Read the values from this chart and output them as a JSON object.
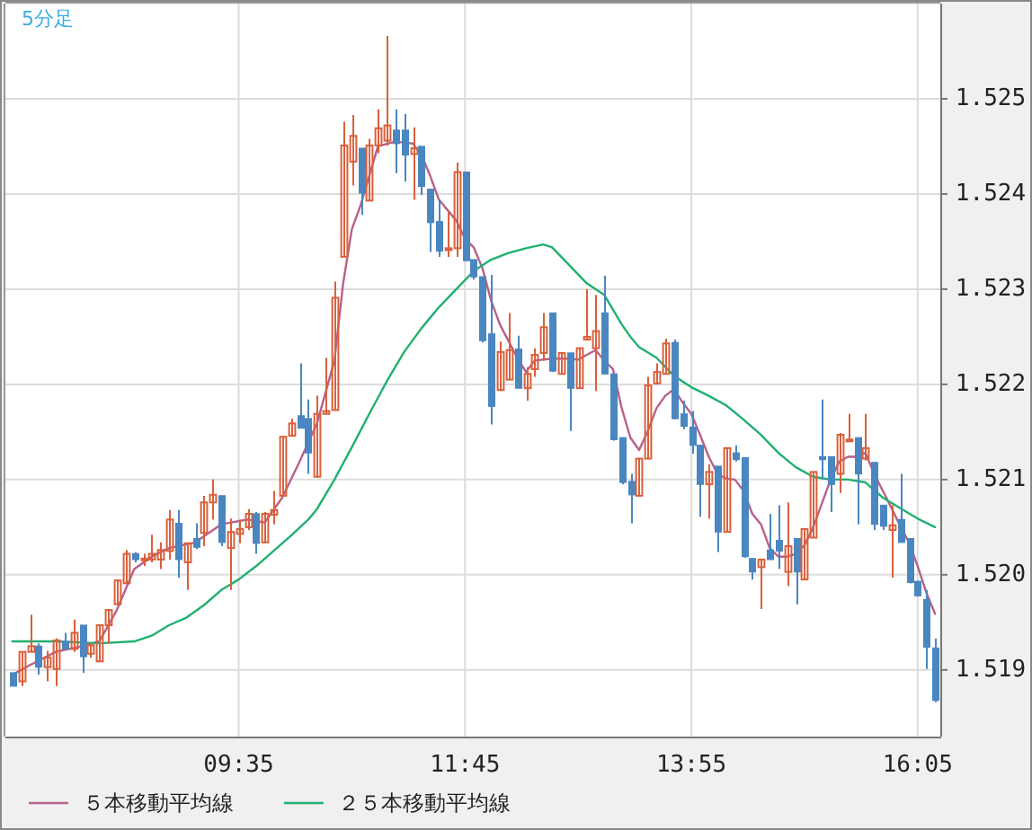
{
  "chart_data": {
    "type": "candlestick",
    "title": "5分足",
    "x": [
      7.4167,
      7.5,
      7.5833,
      7.6667,
      7.75,
      7.8333,
      7.9167,
      8.0,
      8.0833,
      8.1667,
      8.25,
      8.3333,
      8.4167,
      8.5,
      8.5833,
      8.6667,
      8.75,
      8.8333,
      8.9167,
      9.0,
      9.0833,
      9.1667,
      9.25,
      9.3333,
      9.4167,
      9.5,
      9.5833,
      9.6667,
      9.75,
      9.8333,
      9.9167,
      10.0,
      10.0833,
      10.1667,
      10.25,
      10.3333,
      10.4167,
      10.5,
      10.5833,
      10.6667,
      10.75,
      10.8333,
      10.9167,
      11.0,
      11.0833,
      11.1667,
      11.25,
      11.3333,
      11.4167,
      11.5,
      11.5833,
      11.6667,
      11.75,
      11.8333,
      11.9167,
      12.0,
      12.0833,
      12.1667,
      12.25,
      12.3333,
      12.4167,
      12.5,
      12.5833,
      12.6667,
      12.75,
      12.8333,
      12.9167,
      13.0,
      13.0833,
      13.1667,
      13.25,
      13.3333,
      13.4167,
      13.5,
      13.5833,
      13.6667,
      13.75,
      13.8333,
      13.9167,
      14.0,
      14.0833,
      14.1667,
      14.25,
      14.3333,
      14.4167,
      14.5,
      14.5833,
      14.6667,
      14.75,
      14.8333,
      14.9167,
      15.0,
      15.0833,
      15.1667,
      15.25,
      15.3333,
      15.4167,
      15.5,
      15.5833,
      15.6667,
      15.75,
      15.8333,
      15.9167,
      16.0,
      16.0833,
      16.1667,
      16.25
    ],
    "ohlc": [
      [
        1.51897,
        1.51897,
        1.51883,
        1.51883
      ],
      [
        1.51888,
        1.51919,
        1.51883,
        1.51919
      ],
      [
        1.51919,
        1.51958,
        1.51919,
        1.51925
      ],
      [
        1.51925,
        1.51928,
        1.51895,
        1.51903
      ],
      [
        1.51903,
        1.5192,
        1.51888,
        1.51913
      ],
      [
        1.51901,
        1.51933,
        1.51883,
        1.51931
      ],
      [
        1.5193,
        1.51939,
        1.51922,
        1.51922
      ],
      [
        1.51922,
        1.51953,
        1.51919,
        1.51939
      ],
      [
        1.51947,
        1.51947,
        1.51897,
        1.51914
      ],
      [
        1.51917,
        1.51928,
        1.51913,
        1.51926
      ],
      [
        1.51909,
        1.51947,
        1.51909,
        1.51947
      ],
      [
        1.51947,
        1.51963,
        1.51928,
        1.51963
      ],
      [
        1.51969,
        1.51995,
        1.51969,
        1.51994
      ],
      [
        1.51991,
        1.52026,
        1.51991,
        1.52022
      ],
      [
        1.52022,
        1.52024,
        1.52013,
        1.52016
      ],
      [
        1.52016,
        1.52022,
        1.52009,
        1.52017
      ],
      [
        1.52016,
        1.52042,
        1.52013,
        1.52022
      ],
      [
        1.52016,
        1.52034,
        1.52006,
        1.52026
      ],
      [
        1.52025,
        1.52068,
        1.52016,
        1.52058
      ],
      [
        1.52054,
        1.52068,
        1.51997,
        1.52016
      ],
      [
        1.52013,
        1.52034,
        1.51984,
        1.52033
      ],
      [
        1.52038,
        1.52054,
        1.52027,
        1.52029
      ],
      [
        1.52044,
        1.52083,
        1.5203,
        1.52076
      ],
      [
        1.52076,
        1.521,
        1.52058,
        1.52084
      ],
      [
        1.52083,
        1.52083,
        1.5203,
        1.52034
      ],
      [
        1.52028,
        1.52059,
        1.51984,
        1.52045
      ],
      [
        1.52043,
        1.52058,
        1.52033,
        1.52048
      ],
      [
        1.5205,
        1.52069,
        1.52047,
        1.52064
      ],
      [
        1.52064,
        1.52066,
        1.52022,
        1.52033
      ],
      [
        1.52034,
        1.52066,
        1.52033,
        1.52064
      ],
      [
        1.52063,
        1.52088,
        1.52053,
        1.52068
      ],
      [
        1.52083,
        1.52145,
        1.52083,
        1.52145
      ],
      [
        1.52146,
        1.52164,
        1.52146,
        1.52159
      ],
      [
        1.52167,
        1.52222,
        1.52154,
        1.52154
      ],
      [
        1.52164,
        1.52184,
        1.52106,
        1.52128
      ],
      [
        1.52103,
        1.52188,
        1.52102,
        1.52169
      ],
      [
        1.52169,
        1.52228,
        1.52169,
        1.52172
      ],
      [
        1.52173,
        1.52308,
        1.52173,
        1.52291
      ],
      [
        1.52334,
        1.52476,
        1.52334,
        1.52451
      ],
      [
        1.52434,
        1.52483,
        1.52409,
        1.52461
      ],
      [
        1.52448,
        1.52448,
        1.52378,
        1.52401
      ],
      [
        1.52393,
        1.52458,
        1.52393,
        1.52451
      ],
      [
        1.52451,
        1.52489,
        1.52443,
        1.52469
      ],
      [
        1.52456,
        1.52566,
        1.52451,
        1.52472
      ],
      [
        1.52467,
        1.52489,
        1.52422,
        1.52453
      ],
      [
        1.52467,
        1.52484,
        1.52413,
        1.52441
      ],
      [
        1.52442,
        1.5247,
        1.52394,
        1.52448
      ],
      [
        1.5245,
        1.5245,
        1.52399,
        1.52408
      ],
      [
        1.52405,
        1.52405,
        1.52339,
        1.5237
      ],
      [
        1.52371,
        1.52394,
        1.52334,
        1.5234
      ],
      [
        1.52341,
        1.52381,
        1.52334,
        1.52343
      ],
      [
        1.52343,
        1.52433,
        1.52334,
        1.52423
      ],
      [
        1.52423,
        1.52423,
        1.5233,
        1.5233
      ],
      [
        1.52331,
        1.52331,
        1.5231,
        1.52313
      ],
      [
        1.52313,
        1.52313,
        1.52244,
        1.52246
      ],
      [
        1.52253,
        1.52315,
        1.52158,
        1.52177
      ],
      [
        1.52194,
        1.52245,
        1.52193,
        1.52234
      ],
      [
        1.52205,
        1.52275,
        1.52205,
        1.52236
      ],
      [
        1.52237,
        1.52251,
        1.52196,
        1.52196
      ],
      [
        1.52196,
        1.52218,
        1.52183,
        1.52211
      ],
      [
        1.52216,
        1.52238,
        1.52208,
        1.52231
      ],
      [
        1.52233,
        1.52275,
        1.52225,
        1.5226
      ],
      [
        1.52275,
        1.52275,
        1.52213,
        1.52214
      ],
      [
        1.52211,
        1.52233,
        1.52211,
        1.52233
      ],
      [
        1.52233,
        1.52233,
        1.52151,
        1.52196
      ],
      [
        1.52196,
        1.52238,
        1.52196,
        1.52238
      ],
      [
        1.52247,
        1.523,
        1.52247,
        1.5225
      ],
      [
        1.52238,
        1.52294,
        1.52193,
        1.52256
      ],
      [
        1.52275,
        1.52314,
        1.52211,
        1.52211
      ],
      [
        1.52211,
        1.52211,
        1.52141,
        1.52142
      ],
      [
        1.52144,
        1.52144,
        1.52095,
        1.52097
      ],
      [
        1.52098,
        1.52106,
        1.52054,
        1.52084
      ],
      [
        1.52083,
        1.52122,
        1.52083,
        1.52122
      ],
      [
        1.52122,
        1.52208,
        1.52122,
        1.52199
      ],
      [
        1.52201,
        1.52222,
        1.522,
        1.52213
      ],
      [
        1.52211,
        1.52248,
        1.52211,
        1.52243
      ],
      [
        1.52244,
        1.52247,
        1.52163,
        1.52164
      ],
      [
        1.52169,
        1.52183,
        1.52153,
        1.52156
      ],
      [
        1.52155,
        1.52172,
        1.52127,
        1.52136
      ],
      [
        1.52136,
        1.52136,
        1.52061,
        1.52095
      ],
      [
        1.52095,
        1.52116,
        1.52059,
        1.52108
      ],
      [
        1.52114,
        1.52114,
        1.52024,
        1.52045
      ],
      [
        1.52045,
        1.52133,
        1.52045,
        1.52133
      ],
      [
        1.52128,
        1.52136,
        1.52119,
        1.52121
      ],
      [
        1.52123,
        1.52123,
        1.52018,
        1.52019
      ],
      [
        1.52017,
        1.52017,
        1.51995,
        1.52003
      ],
      [
        1.52008,
        1.52016,
        1.51964,
        1.52016
      ],
      [
        1.52026,
        1.52064,
        1.52016,
        1.52016
      ],
      [
        1.52036,
        1.52073,
        1.52006,
        1.52025
      ],
      [
        1.52003,
        1.52076,
        1.51988,
        1.5203
      ],
      [
        1.52038,
        1.52038,
        1.51969,
        1.52003
      ],
      [
        1.51995,
        1.52048,
        1.51995,
        1.52048
      ],
      [
        1.52039,
        1.52108,
        1.52039,
        1.52108
      ],
      [
        1.52124,
        1.52184,
        1.521,
        1.52121
      ],
      [
        1.52124,
        1.52124,
        1.52066,
        1.52095
      ],
      [
        1.52106,
        1.52149,
        1.52086,
        1.52147
      ],
      [
        1.52141,
        1.52169,
        1.5214,
        1.52142
      ],
      [
        1.52144,
        1.52144,
        1.52053,
        1.52106
      ],
      [
        1.52122,
        1.52169,
        1.5212,
        1.52133
      ],
      [
        1.52118,
        1.52118,
        1.52047,
        1.52053
      ],
      [
        1.52073,
        1.52073,
        1.52047,
        1.52051
      ],
      [
        1.52047,
        1.52073,
        1.51997,
        1.52052
      ],
      [
        1.52058,
        1.52106,
        1.52034,
        1.52034
      ],
      [
        1.52038,
        1.52038,
        1.51991,
        1.51992
      ],
      [
        1.51993,
        1.51994,
        1.51977,
        1.51978
      ],
      [
        1.51974,
        1.51984,
        1.51901,
        1.51924
      ],
      [
        1.51923,
        1.51933,
        1.51866,
        1.51868
      ]
    ],
    "colors": [
      "#4a86c0",
      "#d9603b",
      "#d9603b",
      "#4a86c0",
      "#d9603b",
      "#d9603b",
      "#4a86c0",
      "#d9603b",
      "#4a86c0",
      "#d9603b",
      "#d9603b",
      "#d9603b",
      "#d9603b",
      "#d9603b",
      "#4a86c0",
      "#d9603b",
      "#d9603b",
      "#d9603b",
      "#d9603b",
      "#4a86c0",
      "#d9603b",
      "#4a86c0",
      "#d9603b",
      "#d9603b",
      "#4a86c0",
      "#d9603b",
      "#d9603b",
      "#d9603b",
      "#4a86c0",
      "#d9603b",
      "#d9603b",
      "#d9603b",
      "#d9603b",
      "#4a86c0",
      "#4a86c0",
      "#d9603b",
      "#d9603b",
      "#d9603b",
      "#d9603b",
      "#d9603b",
      "#4a86c0",
      "#d9603b",
      "#d9603b",
      "#d9603b",
      "#4a86c0",
      "#4a86c0",
      "#d9603b",
      "#4a86c0",
      "#4a86c0",
      "#4a86c0",
      "#d9603b",
      "#d9603b",
      "#4a86c0",
      "#4a86c0",
      "#4a86c0",
      "#4a86c0",
      "#d9603b",
      "#d9603b",
      "#4a86c0",
      "#d9603b",
      "#d9603b",
      "#d9603b",
      "#4a86c0",
      "#d9603b",
      "#4a86c0",
      "#d9603b",
      "#d9603b",
      "#d9603b",
      "#4a86c0",
      "#4a86c0",
      "#4a86c0",
      "#4a86c0",
      "#d9603b",
      "#d9603b",
      "#d9603b",
      "#d9603b",
      "#4a86c0",
      "#4a86c0",
      "#4a86c0",
      "#4a86c0",
      "#d9603b",
      "#4a86c0",
      "#d9603b",
      "#4a86c0",
      "#4a86c0",
      "#4a86c0",
      "#d9603b",
      "#4a86c0",
      "#4a86c0",
      "#d9603b",
      "#4a86c0",
      "#d9603b",
      "#d9603b",
      "#4a86c0",
      "#4a86c0",
      "#d9603b",
      "#d9603b",
      "#4a86c0",
      "#d9603b",
      "#4a86c0",
      "#4a86c0",
      "#d9603b",
      "#4a86c0",
      "#4a86c0",
      "#4a86c0",
      "#4a86c0",
      "#4a86c0"
    ],
    "series": [
      {
        "name": "５本移動平均線",
        "type": "line",
        "color": "#b8608c",
        "x": [
          7.4167,
          7.5833,
          7.8333,
          8.0833,
          8.25,
          8.4167,
          8.5833,
          8.75,
          8.9167,
          9.1667,
          9.4167,
          9.6667,
          9.8333,
          10.0,
          10.1667,
          10.3333,
          10.5,
          10.5833,
          10.6667,
          10.75,
          10.9167,
          11.0833,
          11.25,
          11.3333,
          11.4167,
          11.5,
          11.6667,
          11.75,
          11.8333,
          11.9167,
          12.0,
          12.0833,
          12.25,
          12.3333,
          12.4167,
          12.5833,
          12.75,
          12.8333,
          12.9167,
          13.0,
          13.0833,
          13.1667,
          13.25,
          13.3333,
          13.4167,
          13.5,
          13.5833,
          13.6667,
          13.75,
          13.8333,
          13.9167,
          14.0,
          14.0833,
          14.1667,
          14.25,
          14.3333,
          14.4167,
          14.5,
          14.5833,
          14.6667,
          14.75,
          14.8333,
          14.9167,
          15.0,
          15.0833,
          15.1667,
          15.25,
          15.3333,
          15.4167,
          15.5,
          15.5833,
          15.6667,
          15.75,
          15.8333,
          15.9167,
          16.0,
          16.0833,
          16.1667,
          16.25
        ],
        "values": [
          1.51895,
          1.51905,
          1.51919,
          1.51925,
          1.5193,
          1.51963,
          1.52006,
          1.52019,
          1.52028,
          1.52034,
          1.52053,
          1.52058,
          1.52055,
          1.52081,
          1.52119,
          1.52159,
          1.52225,
          1.52306,
          1.52363,
          1.52388,
          1.5245,
          1.52455,
          1.52453,
          1.52441,
          1.52419,
          1.52394,
          1.52372,
          1.52353,
          1.52344,
          1.52322,
          1.52288,
          1.52263,
          1.52228,
          1.52213,
          1.52225,
          1.52227,
          1.52227,
          1.52226,
          1.52231,
          1.52236,
          1.52225,
          1.52216,
          1.52175,
          1.52144,
          1.52131,
          1.52151,
          1.52175,
          1.52188,
          1.52195,
          1.52181,
          1.52169,
          1.52147,
          1.52124,
          1.52106,
          1.52101,
          1.521,
          1.52088,
          1.52064,
          1.52053,
          1.52028,
          1.52019,
          1.52019,
          1.52022,
          1.52031,
          1.5205,
          1.52075,
          1.521,
          1.52119,
          1.52124,
          1.52124,
          1.52128,
          1.52106,
          1.52088,
          1.5207,
          1.52051,
          1.52034,
          1.52009,
          1.51981,
          1.51959
        ]
      },
      {
        "name": "２５本移動平均線",
        "type": "line",
        "color": "#20b070",
        "x": [
          7.4167,
          7.8333,
          8.25,
          8.5833,
          8.75,
          8.9167,
          9.0833,
          9.25,
          9.4167,
          9.5833,
          9.75,
          9.9167,
          10.0833,
          10.25,
          10.3333,
          10.5,
          10.6667,
          10.8333,
          11.0,
          11.1667,
          11.3333,
          11.5,
          11.6667,
          11.8333,
          12.0,
          12.1667,
          12.3333,
          12.5,
          12.5833,
          12.75,
          12.9167,
          13.0833,
          13.25,
          13.3333,
          13.4167,
          13.5833,
          13.75,
          13.9167,
          14.0833,
          14.25,
          14.4167,
          14.5833,
          14.75,
          14.9167,
          15.0833,
          15.25,
          15.4167,
          15.5833,
          15.75,
          15.9167,
          16.0833,
          16.25
        ],
        "values": [
          1.5193,
          1.5193,
          1.51928,
          1.5193,
          1.51936,
          1.51947,
          1.51955,
          1.51968,
          1.51984,
          1.51995,
          1.52009,
          1.52025,
          1.52041,
          1.52058,
          1.52069,
          1.521,
          1.52134,
          1.52169,
          1.52203,
          1.52234,
          1.52259,
          1.52281,
          1.523,
          1.52319,
          1.52331,
          1.52338,
          1.52343,
          1.52347,
          1.52344,
          1.52325,
          1.52306,
          1.52294,
          1.52263,
          1.5225,
          1.52239,
          1.52228,
          1.52209,
          1.52197,
          1.52188,
          1.52178,
          1.52163,
          1.52147,
          1.52128,
          1.52113,
          1.52103,
          1.521,
          1.521,
          1.52097,
          1.52081,
          1.5207,
          1.52059,
          1.5205
        ]
      }
    ],
    "xlim": [
      7.35,
      16.3
    ],
    "xticks": [
      {
        "value": 9.5833,
        "label": "09:35"
      },
      {
        "value": 11.75,
        "label": "11:45"
      },
      {
        "value": 13.9167,
        "label": "13:55"
      },
      {
        "value": 16.0833,
        "label": "16:05"
      }
    ],
    "ylim": [
      1.5183,
      1.526
    ],
    "yticks": [
      1.519,
      {
        "value": 1.52,
        "label": "1.520"
      },
      1.521,
      1.522,
      1.523,
      1.524,
      1.525
    ],
    "grid": true,
    "legend": "bottom"
  }
}
